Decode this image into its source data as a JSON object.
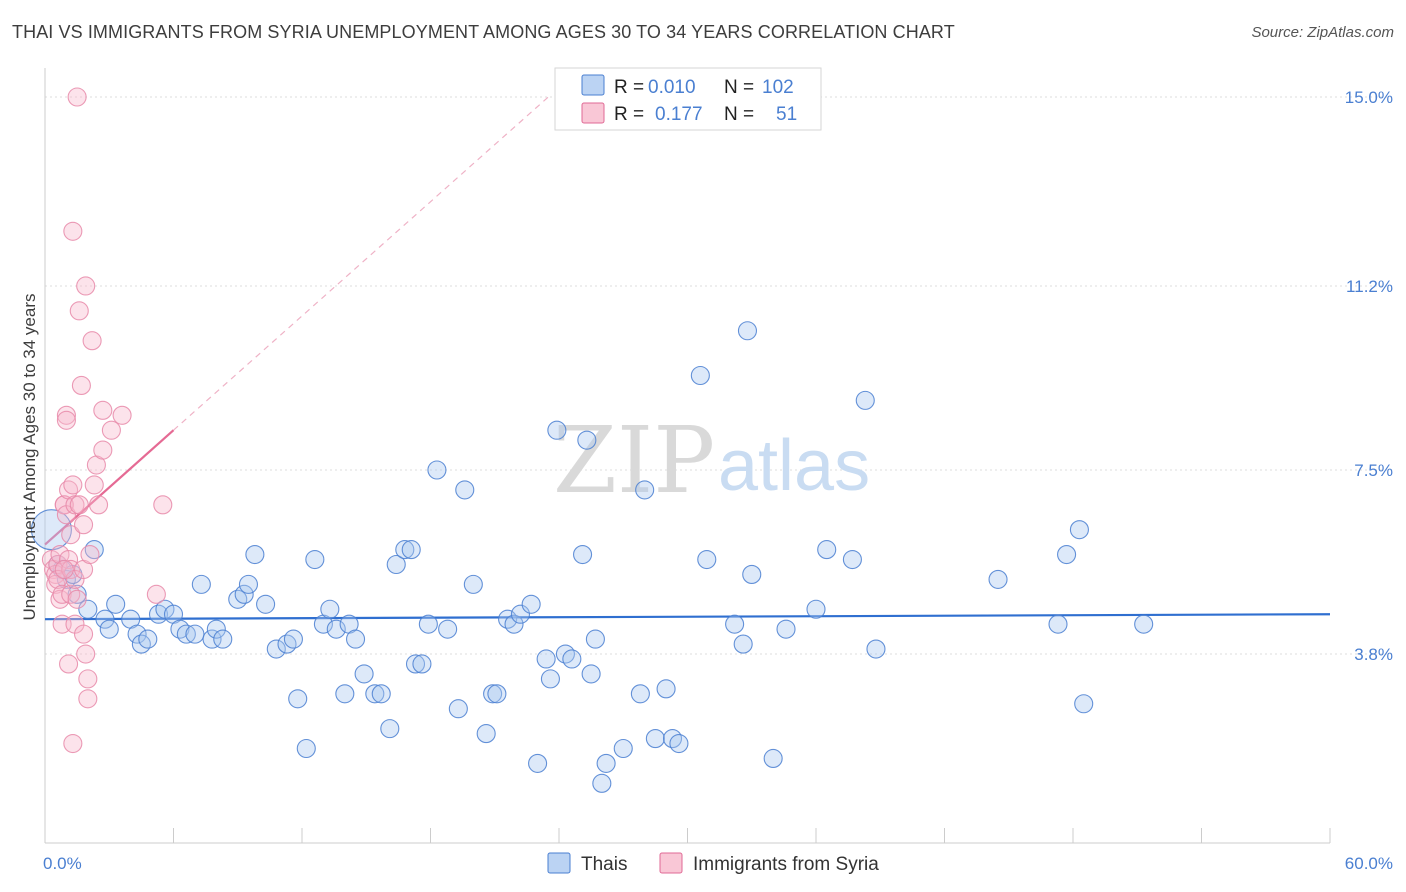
{
  "header": {
    "title": "THAI VS IMMIGRANTS FROM SYRIA UNEMPLOYMENT AMONG AGES 30 TO 34 YEARS CORRELATION CHART",
    "source": "Source: ZipAtlas.com"
  },
  "watermark": {
    "part1": "ZIP",
    "part2": "atlas"
  },
  "legend": {
    "r_label": "R =",
    "n_label": "N =",
    "series": [
      {
        "name": "Thais",
        "r": "0.010",
        "n": "102",
        "fill": "#aac8f0",
        "stroke": "#4a7fd1"
      },
      {
        "name": "Immigrants from Syria",
        "r": "0.177",
        "n": "51",
        "fill": "#f7b9cc",
        "stroke": "#e06a95"
      }
    ]
  },
  "colors": {
    "blue": "#4a7fd1",
    "blue_line": "#2f6fd0",
    "pink": "#e88aa9",
    "pink_line": "#e56a94",
    "grid": "#dddddd"
  },
  "chart_data": {
    "type": "scatter",
    "title": "THAI VS IMMIGRANTS FROM SYRIA UNEMPLOYMENT AMONG AGES 30 TO 34 YEARS CORRELATION CHART",
    "xlabel": "",
    "ylabel": "Unemployment Among Ages 30 to 34 years",
    "xlim": [
      0,
      60
    ],
    "ylim": [
      0,
      15.4
    ],
    "x_tick_labels": [
      "0.0%",
      "60.0%"
    ],
    "y_ticks": [
      3.8,
      7.5,
      11.2,
      15.0
    ],
    "y_tick_labels": [
      "3.8%",
      "7.5%",
      "11.2%",
      "15.0%"
    ],
    "grid": true,
    "legend_position": "top-center",
    "series": [
      {
        "name": "Thais",
        "trend": {
          "x": [
            0,
            60
          ],
          "y": [
            4.5,
            4.6
          ]
        },
        "points": [
          [
            0.3,
            6.3
          ],
          [
            0.6,
            5.6
          ],
          [
            0.8,
            5.5
          ],
          [
            1.0,
            5.3
          ],
          [
            1.3,
            5.4
          ],
          [
            1.5,
            5.0
          ],
          [
            2.0,
            4.7
          ],
          [
            2.3,
            5.9
          ],
          [
            2.8,
            4.5
          ],
          [
            3.0,
            4.3
          ],
          [
            3.3,
            4.8
          ],
          [
            4.0,
            4.5
          ],
          [
            4.3,
            4.2
          ],
          [
            4.5,
            4.0
          ],
          [
            4.8,
            4.1
          ],
          [
            5.3,
            4.6
          ],
          [
            5.6,
            4.7
          ],
          [
            6.0,
            4.6
          ],
          [
            6.3,
            4.3
          ],
          [
            6.6,
            4.2
          ],
          [
            7.0,
            4.2
          ],
          [
            7.3,
            5.2
          ],
          [
            7.8,
            4.1
          ],
          [
            8.0,
            4.3
          ],
          [
            8.3,
            4.1
          ],
          [
            9.0,
            4.9
          ],
          [
            9.3,
            5.0
          ],
          [
            9.5,
            5.2
          ],
          [
            9.8,
            5.8
          ],
          [
            10.3,
            4.8
          ],
          [
            10.8,
            3.9
          ],
          [
            11.3,
            4.0
          ],
          [
            11.6,
            4.1
          ],
          [
            11.8,
            2.9
          ],
          [
            12.2,
            1.9
          ],
          [
            12.6,
            5.7
          ],
          [
            13.0,
            4.4
          ],
          [
            13.3,
            4.7
          ],
          [
            13.6,
            4.3
          ],
          [
            14.0,
            3.0
          ],
          [
            14.2,
            4.4
          ],
          [
            14.5,
            4.1
          ],
          [
            14.9,
            3.4
          ],
          [
            15.4,
            3.0
          ],
          [
            15.7,
            3.0
          ],
          [
            16.1,
            2.3
          ],
          [
            16.4,
            5.6
          ],
          [
            16.8,
            5.9
          ],
          [
            17.1,
            5.9
          ],
          [
            17.3,
            3.6
          ],
          [
            17.6,
            3.6
          ],
          [
            17.9,
            4.4
          ],
          [
            18.3,
            7.5
          ],
          [
            18.8,
            4.3
          ],
          [
            19.3,
            2.7
          ],
          [
            19.6,
            7.1
          ],
          [
            20.0,
            5.2
          ],
          [
            20.6,
            2.2
          ],
          [
            20.9,
            3.0
          ],
          [
            21.1,
            3.0
          ],
          [
            21.6,
            4.5
          ],
          [
            21.9,
            4.4
          ],
          [
            22.2,
            4.6
          ],
          [
            22.7,
            4.8
          ],
          [
            23.0,
            1.6
          ],
          [
            23.4,
            3.7
          ],
          [
            23.6,
            3.3
          ],
          [
            23.9,
            8.3
          ],
          [
            24.3,
            3.8
          ],
          [
            24.6,
            3.7
          ],
          [
            25.1,
            5.8
          ],
          [
            25.3,
            8.1
          ],
          [
            25.5,
            3.4
          ],
          [
            25.7,
            4.1
          ],
          [
            26.0,
            1.2
          ],
          [
            26.2,
            1.6
          ],
          [
            27.0,
            1.9
          ],
          [
            27.8,
            3.0
          ],
          [
            28.0,
            7.1
          ],
          [
            28.5,
            2.1
          ],
          [
            29.0,
            3.1
          ],
          [
            29.3,
            2.1
          ],
          [
            29.6,
            2.0
          ],
          [
            30.6,
            9.4
          ],
          [
            30.9,
            5.7
          ],
          [
            32.2,
            4.4
          ],
          [
            32.6,
            4.0
          ],
          [
            32.8,
            10.3
          ],
          [
            33.0,
            5.4
          ],
          [
            34.0,
            1.7
          ],
          [
            34.6,
            4.3
          ],
          [
            36.0,
            4.7
          ],
          [
            36.5,
            5.9
          ],
          [
            37.7,
            5.7
          ],
          [
            38.3,
            8.9
          ],
          [
            38.8,
            3.9
          ],
          [
            44.5,
            5.3
          ],
          [
            47.3,
            4.4
          ],
          [
            47.7,
            5.8
          ],
          [
            48.3,
            6.3
          ],
          [
            48.5,
            2.8
          ],
          [
            51.3,
            4.4
          ]
        ]
      },
      {
        "name": "Immigrants from Syria",
        "trend": {
          "x": [
            0,
            6
          ],
          "y": [
            6.0,
            8.3
          ]
        },
        "trend_extension": {
          "x": [
            6,
            23.5
          ],
          "y": [
            8.3,
            15.0
          ]
        },
        "points": [
          [
            0.3,
            5.7
          ],
          [
            0.4,
            5.5
          ],
          [
            0.5,
            5.4
          ],
          [
            0.5,
            5.2
          ],
          [
            0.6,
            5.6
          ],
          [
            0.6,
            5.3
          ],
          [
            0.7,
            5.8
          ],
          [
            0.7,
            4.9
          ],
          [
            0.8,
            5.0
          ],
          [
            0.8,
            4.4
          ],
          [
            0.9,
            6.8
          ],
          [
            0.9,
            6.8
          ],
          [
            1.0,
            8.6
          ],
          [
            1.0,
            8.5
          ],
          [
            1.0,
            6.6
          ],
          [
            1.1,
            7.1
          ],
          [
            1.1,
            5.7
          ],
          [
            1.2,
            5.5
          ],
          [
            1.2,
            6.2
          ],
          [
            1.2,
            5.0
          ],
          [
            1.3,
            12.3
          ],
          [
            1.3,
            7.2
          ],
          [
            1.4,
            6.8
          ],
          [
            1.4,
            5.3
          ],
          [
            1.4,
            4.4
          ],
          [
            1.5,
            15.0
          ],
          [
            1.5,
            4.9
          ],
          [
            1.6,
            10.7
          ],
          [
            1.6,
            6.8
          ],
          [
            1.7,
            9.2
          ],
          [
            1.8,
            6.4
          ],
          [
            1.8,
            5.5
          ],
          [
            1.8,
            4.2
          ],
          [
            1.9,
            11.2
          ],
          [
            1.9,
            3.8
          ],
          [
            2.0,
            3.3
          ],
          [
            2.0,
            2.9
          ],
          [
            2.1,
            5.8
          ],
          [
            2.2,
            10.1
          ],
          [
            2.3,
            7.2
          ],
          [
            2.4,
            7.6
          ],
          [
            2.5,
            6.8
          ],
          [
            2.7,
            7.9
          ],
          [
            2.7,
            8.7
          ],
          [
            3.1,
            8.3
          ],
          [
            3.6,
            8.6
          ],
          [
            5.2,
            5.0
          ],
          [
            5.5,
            6.8
          ],
          [
            1.1,
            3.6
          ],
          [
            1.3,
            2.0
          ],
          [
            0.9,
            5.5
          ]
        ]
      }
    ]
  }
}
